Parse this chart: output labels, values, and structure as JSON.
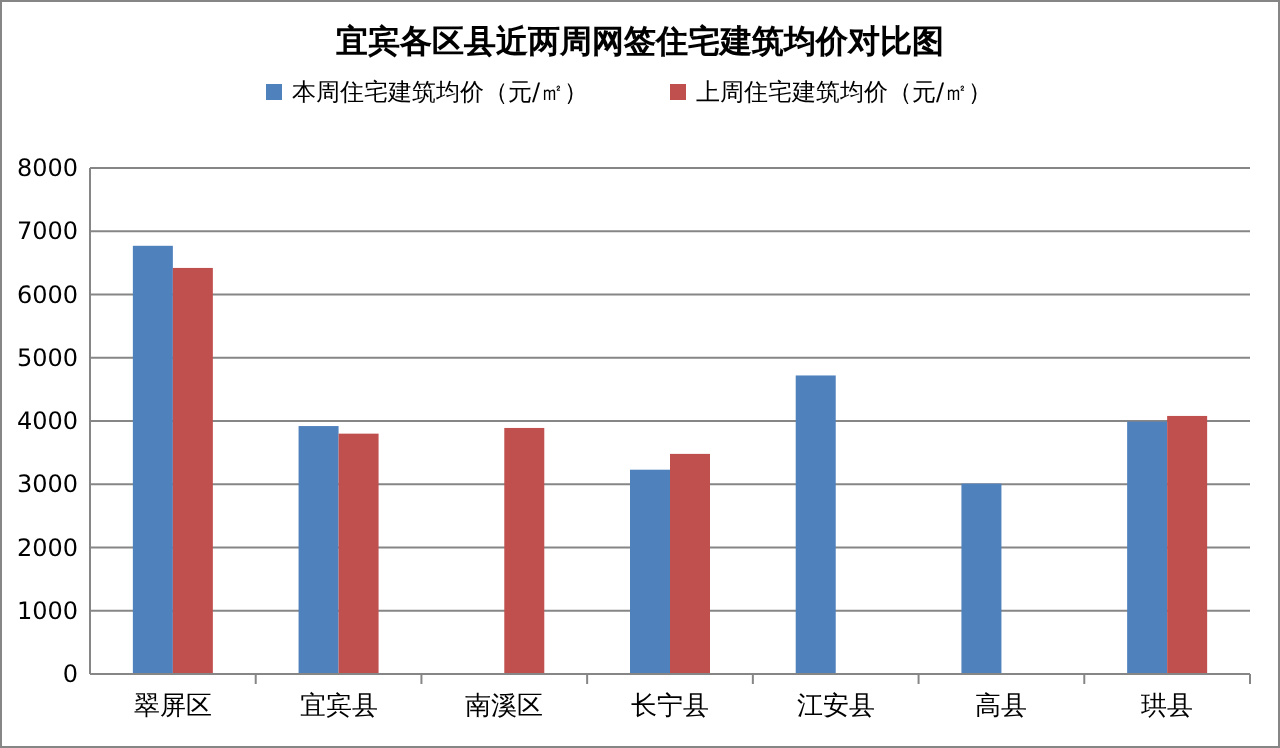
{
  "chart_data": {
    "type": "bar",
    "title": "宜宾各区县近两周网签住宅建筑均价对比图",
    "categories": [
      "翠屏区",
      "宜宾县",
      "南溪区",
      "长宁县",
      "江安县",
      "高县",
      "珙县"
    ],
    "series": [
      {
        "name": "本周住宅建筑均价（元/㎡）",
        "color": "#4f81bd",
        "values": [
          6770,
          3920,
          null,
          3230,
          4720,
          3010,
          3990
        ]
      },
      {
        "name": "上周住宅建筑均价（元/㎡）",
        "color": "#c0504d",
        "values": [
          6420,
          3800,
          3890,
          3480,
          null,
          null,
          4080
        ]
      }
    ],
    "ylim": [
      0,
      8000
    ],
    "yticks": [
      0,
      1000,
      2000,
      3000,
      4000,
      5000,
      6000,
      7000,
      8000
    ],
    "grid": "y",
    "legend": "top"
  }
}
